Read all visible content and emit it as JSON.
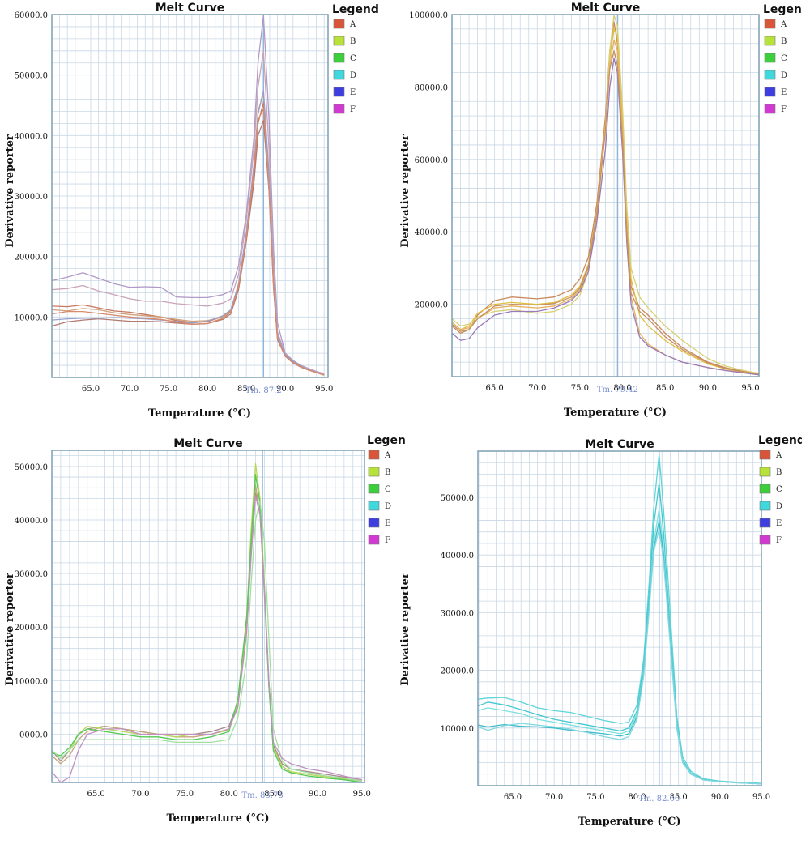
{
  "chart_data": [
    {
      "type": "line",
      "title": "Melt Curve",
      "xlabel": "Temperature (°C)",
      "ylabel": "Derivative reporter",
      "xlim": [
        60.0,
        95.5
      ],
      "ylim": [
        0,
        60000
      ],
      "xticks": [
        "65.0",
        "70.0",
        "75.0",
        "80.0",
        "85.0",
        "90.0",
        "95.0"
      ],
      "yticks": [
        "10000.0",
        "20000.0",
        "30000.0",
        "40000.0",
        "50000.0",
        "60000.0"
      ],
      "tm_label": "Tm. 87.2",
      "tm": 87.2,
      "legend": {
        "title": "Legend",
        "items": [
          "A",
          "B",
          "C",
          "D",
          "E",
          "F"
        ],
        "colors": [
          "#d9553a",
          "#b7e23a",
          "#3ccf3c",
          "#3fd8dc",
          "#3d3de0",
          "#d238d2"
        ]
      },
      "x": [
        60,
        62,
        64,
        66,
        68,
        70,
        72,
        74,
        76,
        78,
        80,
        82,
        83,
        84,
        85,
        86,
        86.5,
        87.2,
        87.9,
        88.5,
        89,
        90,
        91,
        92,
        93,
        94,
        95
      ],
      "series": [
        {
          "color": "#b09ac6",
          "values": [
            16000,
            16600,
            17300,
            16400,
            15500,
            14900,
            15000,
            14900,
            13300,
            13200,
            13200,
            13700,
            14300,
            18500,
            27000,
            40000,
            52000,
            60500,
            43000,
            21000,
            9000,
            4000,
            2800,
            2000,
            1500,
            1000,
            600
          ]
        },
        {
          "color": "#c9a3b8",
          "values": [
            14500,
            14700,
            15200,
            14300,
            13700,
            13000,
            12600,
            12600,
            12200,
            12000,
            11800,
            12300,
            13000,
            17000,
            26000,
            38000,
            48000,
            54000,
            38000,
            18000,
            7500,
            3800,
            2600,
            1900,
            1400,
            900,
            500
          ]
        },
        {
          "color": "#c7775c",
          "values": [
            11800,
            11700,
            12000,
            11500,
            11000,
            10800,
            10400,
            10000,
            9400,
            9100,
            9200,
            10100,
            11000,
            15000,
            23000,
            34000,
            42000,
            45500,
            32000,
            15000,
            6500,
            3600,
            2500,
            1800,
            1300,
            800,
            400
          ]
        },
        {
          "color": "#d0a07a",
          "values": [
            11200,
            11000,
            11400,
            11200,
            10700,
            10400,
            10200,
            10000,
            9600,
            9300,
            9400,
            10000,
            10900,
            15000,
            23500,
            35000,
            44000,
            47000,
            33000,
            15500,
            6800,
            3700,
            2600,
            1900,
            1300,
            800,
            400
          ]
        },
        {
          "color": "#b27a70",
          "values": [
            8500,
            9200,
            9500,
            9700,
            9500,
            9300,
            9300,
            9200,
            9000,
            8800,
            8900,
            9600,
            10500,
            14500,
            22500,
            32500,
            40000,
            42500,
            31000,
            14500,
            6200,
            3500,
            2400,
            1700,
            1200,
            800,
            400
          ]
        },
        {
          "color": "#9aa0cc",
          "values": [
            9500,
            9700,
            9800,
            9800,
            9900,
            9800,
            9700,
            9500,
            9300,
            9000,
            9300,
            10200,
            11200,
            15500,
            24000,
            35500,
            43500,
            47500,
            34000,
            16000,
            7000,
            3800,
            2700,
            1900,
            1300,
            800,
            400
          ]
        },
        {
          "color": "#d98a6a",
          "values": [
            10500,
            10900,
            10900,
            10600,
            10300,
            10000,
            9800,
            9600,
            9200,
            8800,
            8900,
            9800,
            10800,
            15000,
            23000,
            34500,
            42500,
            44500,
            31500,
            15000,
            6400,
            3600,
            2500,
            1800,
            1200,
            800,
            400
          ]
        }
      ]
    },
    {
      "type": "line",
      "title": "Melt Curve",
      "xlabel": "Temperature (°C)",
      "ylabel": "Derivative reporter",
      "xlim": [
        60.0,
        96.0
      ],
      "ylim": [
        0,
        100000
      ],
      "xticks": [
        "65.0",
        "70.0",
        "75.0",
        "80.0",
        "85.0",
        "90.0",
        "95.0"
      ],
      "yticks": [
        "20000.0",
        "40000.0",
        "60000.0",
        "80000.0",
        "100000.0"
      ],
      "tm_label": "Tm. 79.42",
      "tm": 79.42,
      "legend": {
        "title": "Legend",
        "items": [
          "A",
          "B",
          "C",
          "D",
          "E",
          "F"
        ],
        "colors": [
          "#d9553a",
          "#b7e23a",
          "#3ccf3c",
          "#3fd8dc",
          "#3d3de0",
          "#d238d2"
        ]
      },
      "x": [
        60,
        61,
        62,
        63,
        65,
        67,
        70,
        72,
        74,
        75,
        76,
        77,
        78,
        78.5,
        79,
        79.4,
        80,
        80.5,
        81,
        82,
        83,
        85,
        87,
        90,
        92,
        94,
        96
      ],
      "series": [
        {
          "color": "#c98a5a",
          "values": [
            14000,
            12000,
            13000,
            17000,
            21000,
            22000,
            21500,
            22000,
            24000,
            27000,
            33000,
            48000,
            72000,
            90000,
            98000,
            92000,
            70000,
            42000,
            25000,
            19000,
            17000,
            12000,
            8000,
            4000,
            2500,
            1500,
            800
          ]
        },
        {
          "color": "#e0c040",
          "values": [
            15000,
            13000,
            14000,
            17500,
            20000,
            20500,
            20000,
            20500,
            22500,
            25000,
            31000,
            46000,
            70000,
            88000,
            96000,
            94000,
            72000,
            45000,
            27000,
            17000,
            14000,
            10000,
            7000,
            3500,
            2200,
            1300,
            700
          ]
        },
        {
          "color": "#d8d070",
          "values": [
            16000,
            14000,
            14500,
            16500,
            18000,
            18500,
            17500,
            18000,
            20000,
            22500,
            29000,
            44000,
            69000,
            90000,
            100000,
            97000,
            74000,
            47000,
            30000,
            22000,
            19000,
            14000,
            10000,
            5000,
            3000,
            1800,
            900
          ]
        },
        {
          "color": "#e6b060",
          "values": [
            15000,
            13000,
            13500,
            16000,
            19000,
            19500,
            19000,
            19500,
            21500,
            24000,
            30000,
            45000,
            69000,
            86000,
            93000,
            90000,
            68000,
            40000,
            22000,
            12000,
            9000,
            6000,
            4000,
            2500,
            1800,
            1200,
            600
          ]
        },
        {
          "color": "#9a7ab8",
          "values": [
            12000,
            10000,
            10500,
            13500,
            17000,
            18000,
            18000,
            19000,
            21000,
            23500,
            29000,
            43000,
            63000,
            80000,
            88000,
            84000,
            62000,
            37000,
            20000,
            11000,
            8500,
            6000,
            4000,
            2500,
            1700,
            1100,
            500
          ]
        },
        {
          "color": "#c79060",
          "values": [
            14500,
            12500,
            13000,
            16000,
            19500,
            20000,
            19800,
            20200,
            22000,
            24500,
            30500,
            45500,
            68000,
            85000,
            90000,
            86000,
            65000,
            39000,
            23000,
            18000,
            16000,
            11000,
            7500,
            3800,
            2300,
            1400,
            700
          ]
        }
      ]
    },
    {
      "type": "line",
      "title": "Melt Curve",
      "xlabel": "Temperature (°C)",
      "ylabel": "Derivative reporter",
      "xlim": [
        60.0,
        95.3
      ],
      "ylim": [
        -9000,
        53000
      ],
      "xticks": [
        "65.0",
        "70.0",
        "75.0",
        "80.0",
        "85.0",
        "90.0",
        "95.0"
      ],
      "yticks": [
        "0000.0",
        "10000.0",
        "20000.0",
        "30000.0",
        "40000.0",
        "50000.0"
      ],
      "tm_label": "Tm. 83.78",
      "tm": 83.78,
      "legend": {
        "title": "Legend",
        "items": [
          "A",
          "B",
          "C",
          "D",
          "E",
          "F"
        ],
        "colors": [
          "#d9553a",
          "#b7e23a",
          "#3ccf3c",
          "#3fd8dc",
          "#3d3de0",
          "#d238d2"
        ]
      },
      "x": [
        60,
        61,
        62,
        63,
        64,
        66,
        68,
        70,
        72,
        74,
        76,
        78,
        80,
        81,
        82,
        82.5,
        83,
        83.5,
        84,
        84.5,
        85,
        86,
        87,
        89,
        91,
        93,
        95
      ],
      "series": [
        {
          "color": "#a58a8a",
          "values": [
            -3000,
            -5000,
            -3000,
            0,
            1000,
            1500,
            1000,
            500,
            0,
            0,
            0,
            500,
            1500,
            6000,
            20000,
            34000,
            45000,
            42000,
            28000,
            10000,
            -2000,
            -5500,
            -6500,
            -7000,
            -7500,
            -8000,
            -8500
          ]
        },
        {
          "color": "#c7a47a",
          "values": [
            -4000,
            -5500,
            -4000,
            -1000,
            500,
            1500,
            1000,
            500,
            0,
            -500,
            -500,
            0,
            1000,
            5500,
            20000,
            35000,
            46500,
            41000,
            26000,
            9000,
            -2500,
            -6000,
            -7000,
            -7500,
            -8000,
            -8300,
            -8800
          ]
        },
        {
          "color": "#b7d95a",
          "values": [
            -3000,
            -4500,
            -3000,
            0,
            1500,
            1000,
            500,
            0,
            0,
            -500,
            0,
            0,
            800,
            6000,
            22000,
            38000,
            50500,
            44000,
            28000,
            9500,
            -2500,
            -6000,
            -7000,
            -7500,
            -8000,
            -8300,
            -8700
          ]
        },
        {
          "color": "#55c955",
          "values": [
            -3500,
            -4000,
            -2500,
            0,
            1000,
            500,
            0,
            -500,
            -500,
            -1000,
            -1000,
            -500,
            500,
            6500,
            22000,
            36000,
            48500,
            43000,
            27000,
            9000,
            -3000,
            -6500,
            -7200,
            -7800,
            -8200,
            -8500,
            -9000
          ]
        },
        {
          "color": "#9fe09f",
          "values": [
            -3000,
            -4500,
            -3000,
            -1000,
            -1000,
            -1000,
            -1000,
            -1000,
            -1000,
            -1500,
            -1500,
            -1500,
            -1000,
            3000,
            14000,
            28000,
            40000,
            43500,
            36000,
            18000,
            1000,
            -5000,
            -6500,
            -7200,
            -7800,
            -8200,
            -8800
          ]
        },
        {
          "color": "#c090c0",
          "values": [
            -7000,
            -9000,
            -8000,
            -3000,
            0,
            1000,
            1000,
            0,
            0,
            0,
            0,
            0,
            1000,
            5000,
            19000,
            33000,
            44500,
            41000,
            27000,
            10000,
            -1500,
            -4500,
            -5500,
            -6500,
            -7000,
            -7800,
            -8500
          ]
        }
      ]
    },
    {
      "type": "line",
      "title": "Melt Curve",
      "xlabel": "Temperature (°C)",
      "ylabel": "Derivative reporter",
      "xlim": [
        60.8,
        95.0
      ],
      "ylim": [
        0,
        58000
      ],
      "xticks": [
        "65.0",
        "70.0",
        "75.0",
        "80.0",
        "85.0",
        "90.0",
        "95.0"
      ],
      "yticks": [
        "10000.0",
        "20000.0",
        "30000.0",
        "40000.0",
        "50000.0"
      ],
      "tm_label": "Tm. 82.66",
      "tm": 82.66,
      "legend": {
        "title": "Legend",
        "items": [
          "A",
          "B",
          "C",
          "D",
          "E",
          "F"
        ],
        "colors": [
          "#d9553a",
          "#b7e23a",
          "#3ccf3c",
          "#3fd8dc",
          "#3d3de0",
          "#d238d2"
        ]
      },
      "x": [
        60.8,
        62,
        64,
        66,
        68,
        70,
        72,
        74,
        76,
        78,
        79,
        80,
        80.8,
        81.5,
        82,
        82.66,
        83.2,
        84,
        84.8,
        85.5,
        86.5,
        88,
        90,
        92,
        94,
        95
      ],
      "series": [
        {
          "color": "#5fd5d8",
          "values": [
            15000,
            15200,
            15300,
            14500,
            13500,
            13000,
            12700,
            12000,
            11300,
            10800,
            11000,
            14000,
            22000,
            36000,
            48000,
            57500,
            48000,
            30000,
            12000,
            5000,
            2500,
            1200,
            800,
            600,
            500,
            400
          ]
        },
        {
          "color": "#46c8d0",
          "values": [
            13800,
            14500,
            14000,
            13200,
            12300,
            11500,
            11000,
            10500,
            10000,
            9500,
            10000,
            13000,
            21000,
            34000,
            45000,
            52500,
            44000,
            27000,
            11000,
            4500,
            2200,
            1100,
            700,
            500,
            400,
            300
          ]
        },
        {
          "color": "#7ee0e0",
          "values": [
            13000,
            13500,
            13000,
            12500,
            11500,
            11000,
            10500,
            10000,
            9500,
            9000,
            9500,
            12500,
            20000,
            32000,
            42000,
            48000,
            41000,
            25500,
            10500,
            4200,
            2100,
            1000,
            700,
            500,
            400,
            300
          ]
        },
        {
          "color": "#3cbcc8",
          "values": [
            10500,
            10200,
            10600,
            10300,
            10200,
            10000,
            9600,
            9300,
            9000,
            8600,
            9000,
            12000,
            19500,
            31500,
            41000,
            46000,
            40000,
            25000,
            10000,
            4000,
            2000,
            1000,
            700,
            500,
            400,
            300
          ]
        },
        {
          "color": "#86d8e0",
          "values": [
            10200,
            9600,
            10400,
            10800,
            10500,
            10200,
            9800,
            9200,
            8500,
            8000,
            8500,
            11500,
            19000,
            31000,
            40500,
            44500,
            39000,
            24500,
            10000,
            4000,
            2000,
            1000,
            700,
            500,
            400,
            300
          ]
        }
      ]
    }
  ]
}
